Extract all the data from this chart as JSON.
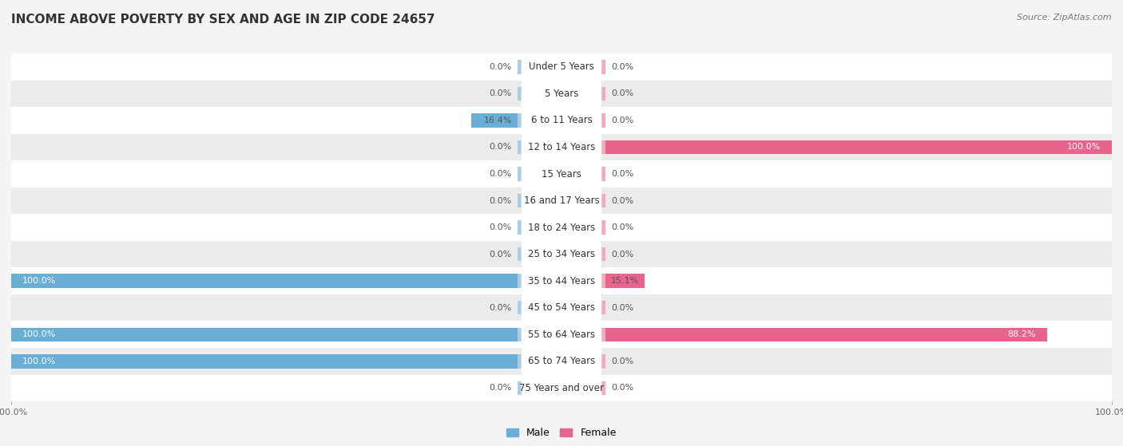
{
  "title": "INCOME ABOVE POVERTY BY SEX AND AGE IN ZIP CODE 24657",
  "source": "Source: ZipAtlas.com",
  "categories": [
    "Under 5 Years",
    "5 Years",
    "6 to 11 Years",
    "12 to 14 Years",
    "15 Years",
    "16 and 17 Years",
    "18 to 24 Years",
    "25 to 34 Years",
    "35 to 44 Years",
    "45 to 54 Years",
    "55 to 64 Years",
    "65 to 74 Years",
    "75 Years and over"
  ],
  "male_values": [
    0.0,
    0.0,
    16.4,
    0.0,
    0.0,
    0.0,
    0.0,
    0.0,
    100.0,
    0.0,
    100.0,
    100.0,
    0.0
  ],
  "female_values": [
    0.0,
    0.0,
    0.0,
    100.0,
    0.0,
    0.0,
    0.0,
    0.0,
    15.1,
    0.0,
    88.2,
    0.0,
    0.0
  ],
  "male_color_full": "#6aaed6",
  "male_color_stub": "#aecde3",
  "female_color_full": "#e8648c",
  "female_color_stub": "#f4aaba",
  "male_label": "Male",
  "female_label": "Female",
  "bar_height": 0.52,
  "stub_size": 8.0,
  "background_color": "#f4f4f4",
  "row_colors": [
    "#ffffff",
    "#ebebeb"
  ],
  "xlim": 100,
  "title_fontsize": 11,
  "label_fontsize": 8.5,
  "value_fontsize": 8.0,
  "source_fontsize": 8.0,
  "legend_fontsize": 9.0
}
